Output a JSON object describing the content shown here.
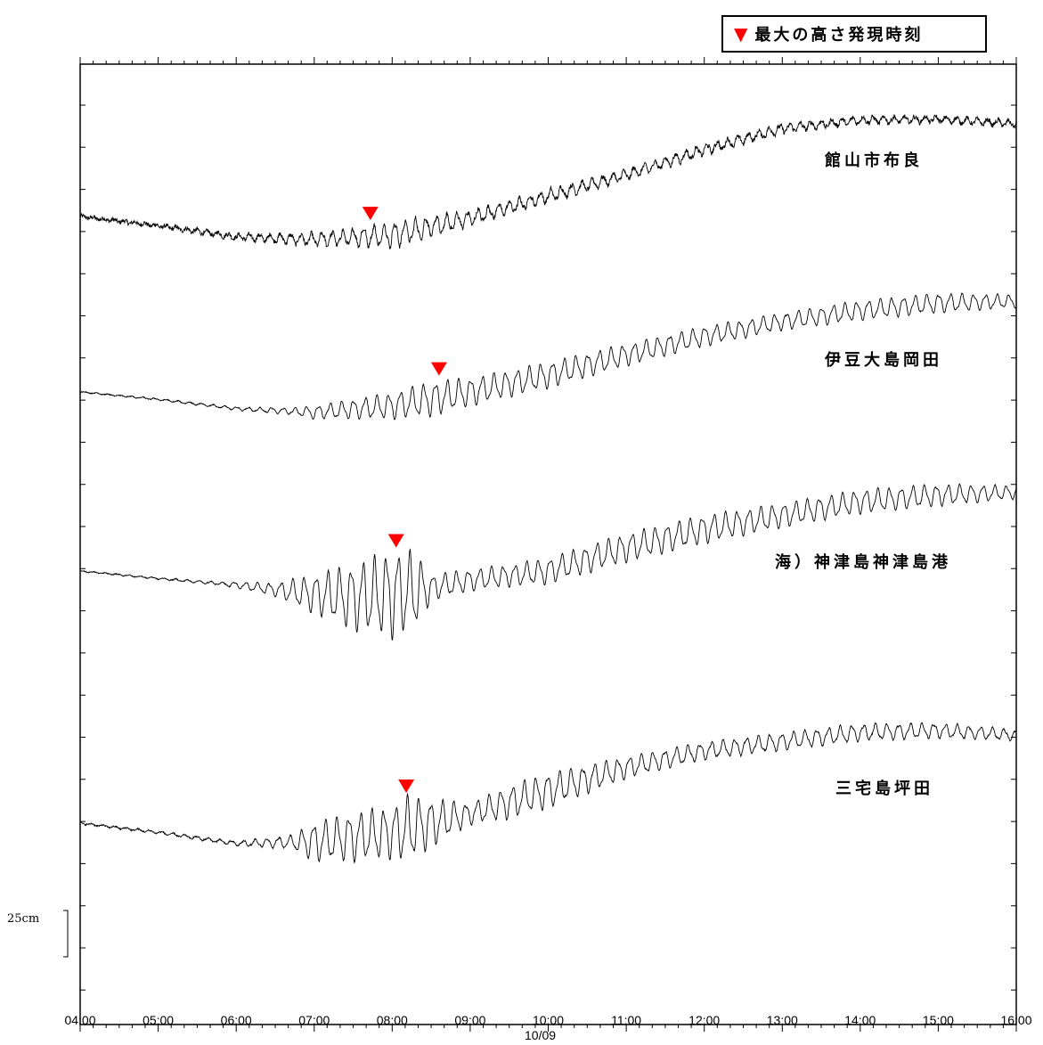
{
  "legend": {
    "marker": "▼",
    "text": "最大の高さ発現時刻",
    "marker_color": "#ff0000"
  },
  "chart_data": {
    "type": "line",
    "x_tick_labels": [
      "04:00",
      "05:00",
      "06:00",
      "07:00",
      "08:00",
      "09:00",
      "10:00",
      "11:00",
      "12:00",
      "13:00",
      "14:00",
      "15:00",
      "16:00"
    ],
    "date_label": "10/09",
    "xlim_hours": [
      4,
      16
    ],
    "scale_bar": {
      "label": "25cm",
      "value_cm": 25
    },
    "grid": false,
    "series": [
      {
        "name": "館山市布良",
        "max_height_time_hour": 7.72,
        "tide": [
          [
            4.0,
            0
          ],
          [
            5.0,
            -10
          ],
          [
            6.0,
            -22
          ],
          [
            7.0,
            -25
          ],
          [
            8.0,
            -20
          ],
          [
            9.0,
            -2
          ],
          [
            10.0,
            22
          ],
          [
            11.0,
            45
          ],
          [
            12.0,
            72
          ],
          [
            13.0,
            95
          ],
          [
            14.0,
            104
          ],
          [
            15.0,
            105
          ],
          [
            16.0,
            100
          ]
        ],
        "wave": [
          [
            4.0,
            1
          ],
          [
            5.0,
            1.5
          ],
          [
            6.0,
            2.5
          ],
          [
            6.5,
            4
          ],
          [
            7.0,
            6
          ],
          [
            7.5,
            8
          ],
          [
            8.0,
            12
          ],
          [
            8.5,
            10
          ],
          [
            9.0,
            7
          ],
          [
            9.5,
            6
          ],
          [
            10.0,
            6
          ],
          [
            11.0,
            5
          ],
          [
            12.0,
            5
          ],
          [
            13.0,
            4
          ],
          [
            14.0,
            3.5
          ],
          [
            15.0,
            3
          ],
          [
            16.0,
            3
          ]
        ],
        "period_min": 8,
        "noise": 4.5
      },
      {
        "name": "伊豆大島岡田",
        "max_height_time_hour": 8.6,
        "tide": [
          [
            4.0,
            0
          ],
          [
            5.0,
            -8
          ],
          [
            6.0,
            -18
          ],
          [
            7.0,
            -22
          ],
          [
            8.0,
            -15
          ],
          [
            9.0,
            0
          ],
          [
            10.0,
            18
          ],
          [
            11.0,
            40
          ],
          [
            12.0,
            60
          ],
          [
            13.0,
            76
          ],
          [
            14.0,
            88
          ],
          [
            15.0,
            96
          ],
          [
            16.0,
            98
          ]
        ],
        "wave": [
          [
            4.0,
            0.5
          ],
          [
            5.0,
            0.8
          ],
          [
            6.0,
            1.5
          ],
          [
            6.7,
            3
          ],
          [
            7.0,
            6
          ],
          [
            7.5,
            9
          ],
          [
            8.0,
            12
          ],
          [
            8.5,
            16
          ],
          [
            9.0,
            13
          ],
          [
            9.5,
            12
          ],
          [
            10.0,
            12
          ],
          [
            11.0,
            10
          ],
          [
            12.0,
            9
          ],
          [
            13.0,
            8
          ],
          [
            14.0,
            9
          ],
          [
            15.0,
            9
          ],
          [
            16.0,
            6
          ]
        ],
        "period_min": 9,
        "noise": 1
      },
      {
        "name": "海）神津島神津島港",
        "max_height_time_hour": 8.05,
        "tide": [
          [
            4.0,
            0
          ],
          [
            5.0,
            -8
          ],
          [
            6.0,
            -15
          ],
          [
            6.5,
            -20
          ],
          [
            7.0,
            -25
          ],
          [
            7.5,
            -28
          ],
          [
            8.0,
            -25
          ],
          [
            8.5,
            -18
          ],
          [
            9.0,
            -10
          ],
          [
            10.0,
            0
          ],
          [
            11.0,
            25
          ],
          [
            12.0,
            45
          ],
          [
            13.0,
            60
          ],
          [
            14.0,
            75
          ],
          [
            15.0,
            82
          ],
          [
            16.0,
            85
          ]
        ],
        "wave": [
          [
            4.0,
            0.5
          ],
          [
            5.0,
            0.8
          ],
          [
            5.8,
            1.5
          ],
          [
            6.5,
            6
          ],
          [
            7.0,
            18
          ],
          [
            7.5,
            30
          ],
          [
            8.0,
            40
          ],
          [
            8.3,
            35
          ],
          [
            8.5,
            12
          ],
          [
            9.0,
            10
          ],
          [
            9.5,
            10
          ],
          [
            10.0,
            12
          ],
          [
            11.0,
            13
          ],
          [
            12.0,
            13
          ],
          [
            13.0,
            11
          ],
          [
            14.0,
            11
          ],
          [
            15.0,
            10
          ],
          [
            16.0,
            6
          ]
        ],
        "period_min": 9,
        "noise": 1
      },
      {
        "name": "三宅島坪田",
        "max_height_time_hour": 8.18,
        "tide": [
          [
            4.0,
            0
          ],
          [
            5.0,
            -10
          ],
          [
            6.0,
            -22
          ],
          [
            7.0,
            -20
          ],
          [
            8.0,
            -10
          ],
          [
            9.0,
            10
          ],
          [
            10.0,
            35
          ],
          [
            11.0,
            60
          ],
          [
            12.0,
            78
          ],
          [
            13.0,
            88
          ],
          [
            14.0,
            98
          ],
          [
            15.0,
            100
          ],
          [
            16.0,
            95
          ]
        ],
        "wave": [
          [
            4.0,
            0.8
          ],
          [
            5.0,
            1.2
          ],
          [
            6.0,
            2
          ],
          [
            6.7,
            6
          ],
          [
            7.0,
            18
          ],
          [
            7.5,
            22
          ],
          [
            8.0,
            24
          ],
          [
            8.2,
            30
          ],
          [
            8.5,
            22
          ],
          [
            9.0,
            10
          ],
          [
            9.5,
            15
          ],
          [
            10.0,
            16
          ],
          [
            11.0,
            10
          ],
          [
            12.0,
            8
          ],
          [
            13.0,
            8
          ],
          [
            14.0,
            8
          ],
          [
            15.0,
            7
          ],
          [
            16.0,
            5
          ]
        ],
        "period_min": 9,
        "noise": 1.5
      }
    ]
  }
}
